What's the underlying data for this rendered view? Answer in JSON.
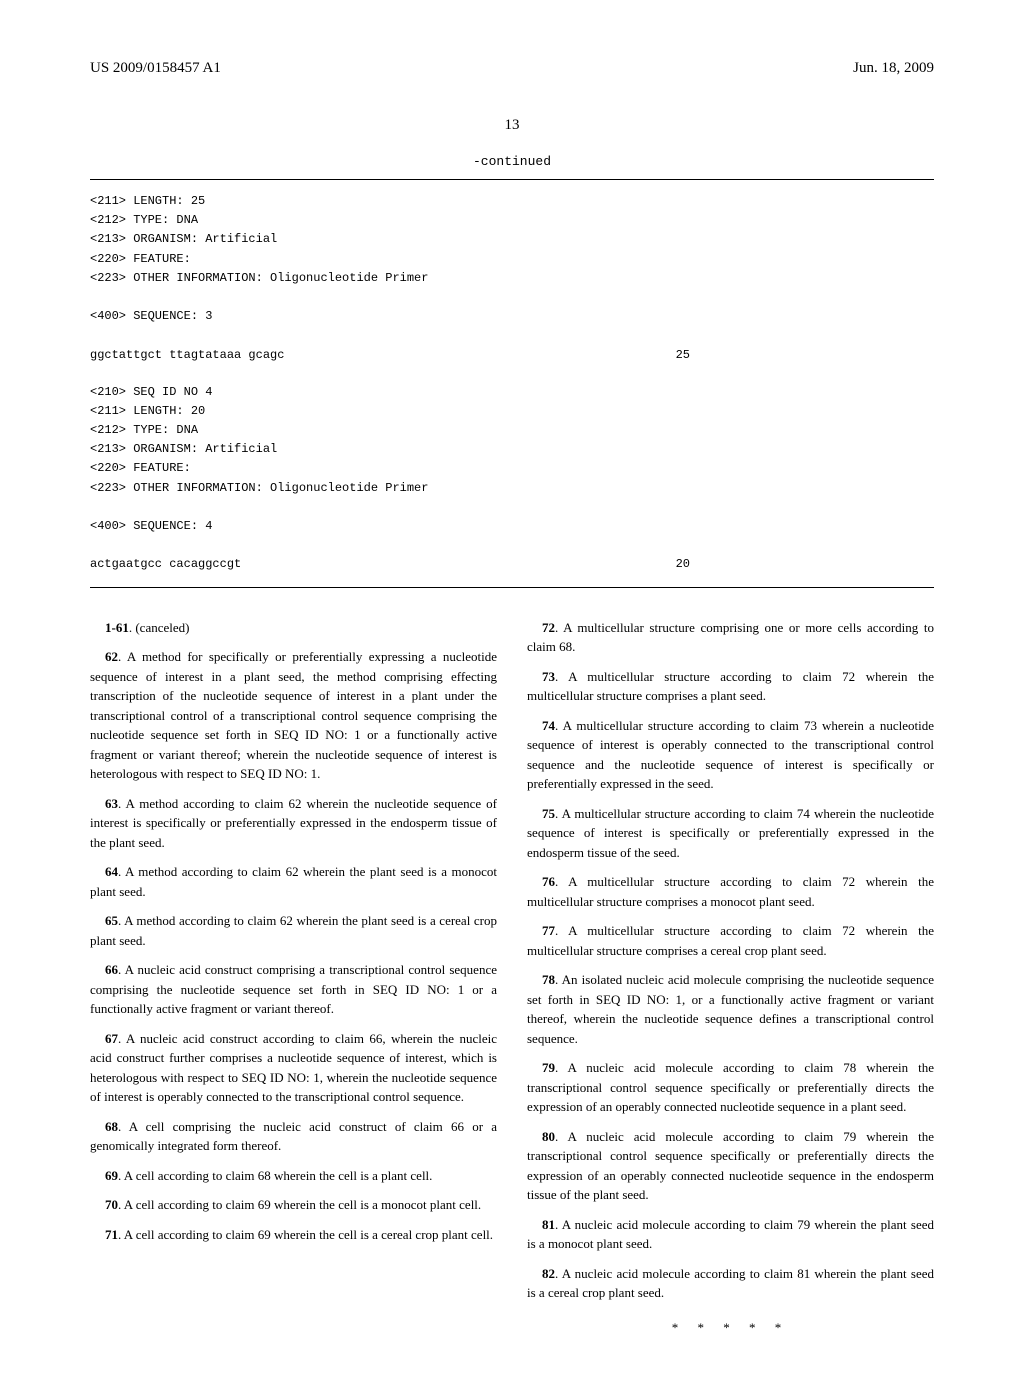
{
  "header": {
    "left": "US 2009/0158457 A1",
    "right": "Jun. 18, 2009"
  },
  "page_number": "13",
  "continued_label": "-continued",
  "sequences": {
    "group1": {
      "lines": [
        "<211> LENGTH: 25",
        "<212> TYPE: DNA",
        "<213> ORGANISM: Artificial",
        "<220> FEATURE:",
        "<223> OTHER INFORMATION: Oligonucleotide Primer"
      ],
      "seq_label": "<400> SEQUENCE: 3",
      "seq_text": "ggctattgct ttagtataaa gcagc",
      "seq_num": "25"
    },
    "group2": {
      "lines": [
        "<210> SEQ ID NO 4",
        "<211> LENGTH: 20",
        "<212> TYPE: DNA",
        "<213> ORGANISM: Artificial",
        "<220> FEATURE:",
        "<223> OTHER INFORMATION: Oligonucleotide Primer"
      ],
      "seq_label": "<400> SEQUENCE: 4",
      "seq_text": "actgaatgcc cacaggccgt",
      "seq_num": "20"
    }
  },
  "claims": {
    "c1_61": {
      "num": "1-61",
      "text": ". (canceled)"
    },
    "c62": {
      "num": "62",
      "text": ". A method for specifically or preferentially expressing a nucleotide sequence of interest in a plant seed, the method comprising effecting transcription of the nucleotide sequence of interest in a plant under the transcriptional control of a transcriptional control sequence comprising the nucleotide sequence set forth in SEQ ID NO: 1 or a functionally active fragment or variant thereof; wherein the nucleotide sequence of interest is heterologous with respect to SEQ ID NO: 1."
    },
    "c63": {
      "num": "63",
      "text": ". A method according to claim 62 wherein the nucleotide sequence of interest is specifically or preferentially expressed in the endosperm tissue of the plant seed."
    },
    "c64": {
      "num": "64",
      "text": ". A method according to claim 62 wherein the plant seed is a monocot plant seed."
    },
    "c65": {
      "num": "65",
      "text": ". A method according to claim 62 wherein the plant seed is a cereal crop plant seed."
    },
    "c66": {
      "num": "66",
      "text": ". A nucleic acid construct comprising a transcriptional control sequence comprising the nucleotide sequence set forth in SEQ ID NO: 1 or a functionally active fragment or variant thereof."
    },
    "c67": {
      "num": "67",
      "text": ". A nucleic acid construct according to claim 66, wherein the nucleic acid construct further comprises a nucleotide sequence of interest, which is heterologous with respect to SEQ ID NO: 1, wherein the nucleotide sequence of interest is operably connected to the transcriptional control sequence."
    },
    "c68": {
      "num": "68",
      "text": ". A cell comprising the nucleic acid construct of claim 66 or a genomically integrated form thereof."
    },
    "c69": {
      "num": "69",
      "text": ". A cell according to claim 68 wherein the cell is a plant cell."
    },
    "c70": {
      "num": "70",
      "text": ". A cell according to claim 69 wherein the cell is a monocot plant cell."
    },
    "c71": {
      "num": "71",
      "text": ". A cell according to claim 69 wherein the cell is a cereal crop plant cell."
    },
    "c72": {
      "num": "72",
      "text": ". A multicellular structure comprising one or more cells according to claim 68."
    },
    "c73": {
      "num": "73",
      "text": ". A multicellular structure according to claim 72 wherein the multicellular structure comprises a plant seed."
    },
    "c74": {
      "num": "74",
      "text": ". A multicellular structure according to claim 73 wherein a nucleotide sequence of interest is operably connected to the transcriptional control sequence and the nucleotide sequence of interest is specifically or preferentially expressed in the seed."
    },
    "c75": {
      "num": "75",
      "text": ". A multicellular structure according to claim 74 wherein the nucleotide sequence of interest is specifically or preferentially expressed in the endosperm tissue of the seed."
    },
    "c76": {
      "num": "76",
      "text": ". A multicellular structure according to claim 72 wherein the multicellular structure comprises a monocot plant seed."
    },
    "c77": {
      "num": "77",
      "text": ". A multicellular structure according to claim 72 wherein the multicellular structure comprises a cereal crop plant seed."
    },
    "c78": {
      "num": "78",
      "text": ". An isolated nucleic acid molecule comprising the nucleotide sequence set forth in SEQ ID NO: 1, or a functionally active fragment or variant thereof, wherein the nucleotide sequence defines a transcriptional control sequence."
    },
    "c79": {
      "num": "79",
      "text": ". A nucleic acid molecule according to claim 78 wherein the transcriptional control sequence specifically or preferentially directs the expression of an operably connected nucleotide sequence in a plant seed."
    },
    "c80": {
      "num": "80",
      "text": ". A nucleic acid molecule according to claim 79 wherein the transcriptional control sequence specifically or preferentially directs the expression of an operably connected nucleotide sequence in the endosperm tissue of the plant seed."
    },
    "c81": {
      "num": "81",
      "text": ". A nucleic acid molecule according to claim 79 wherein the plant seed is a monocot plant seed."
    },
    "c82": {
      "num": "82",
      "text": ". A nucleic acid molecule according to claim 81 wherein the plant seed is a cereal crop plant seed."
    }
  },
  "end_stars": "* * * * *"
}
